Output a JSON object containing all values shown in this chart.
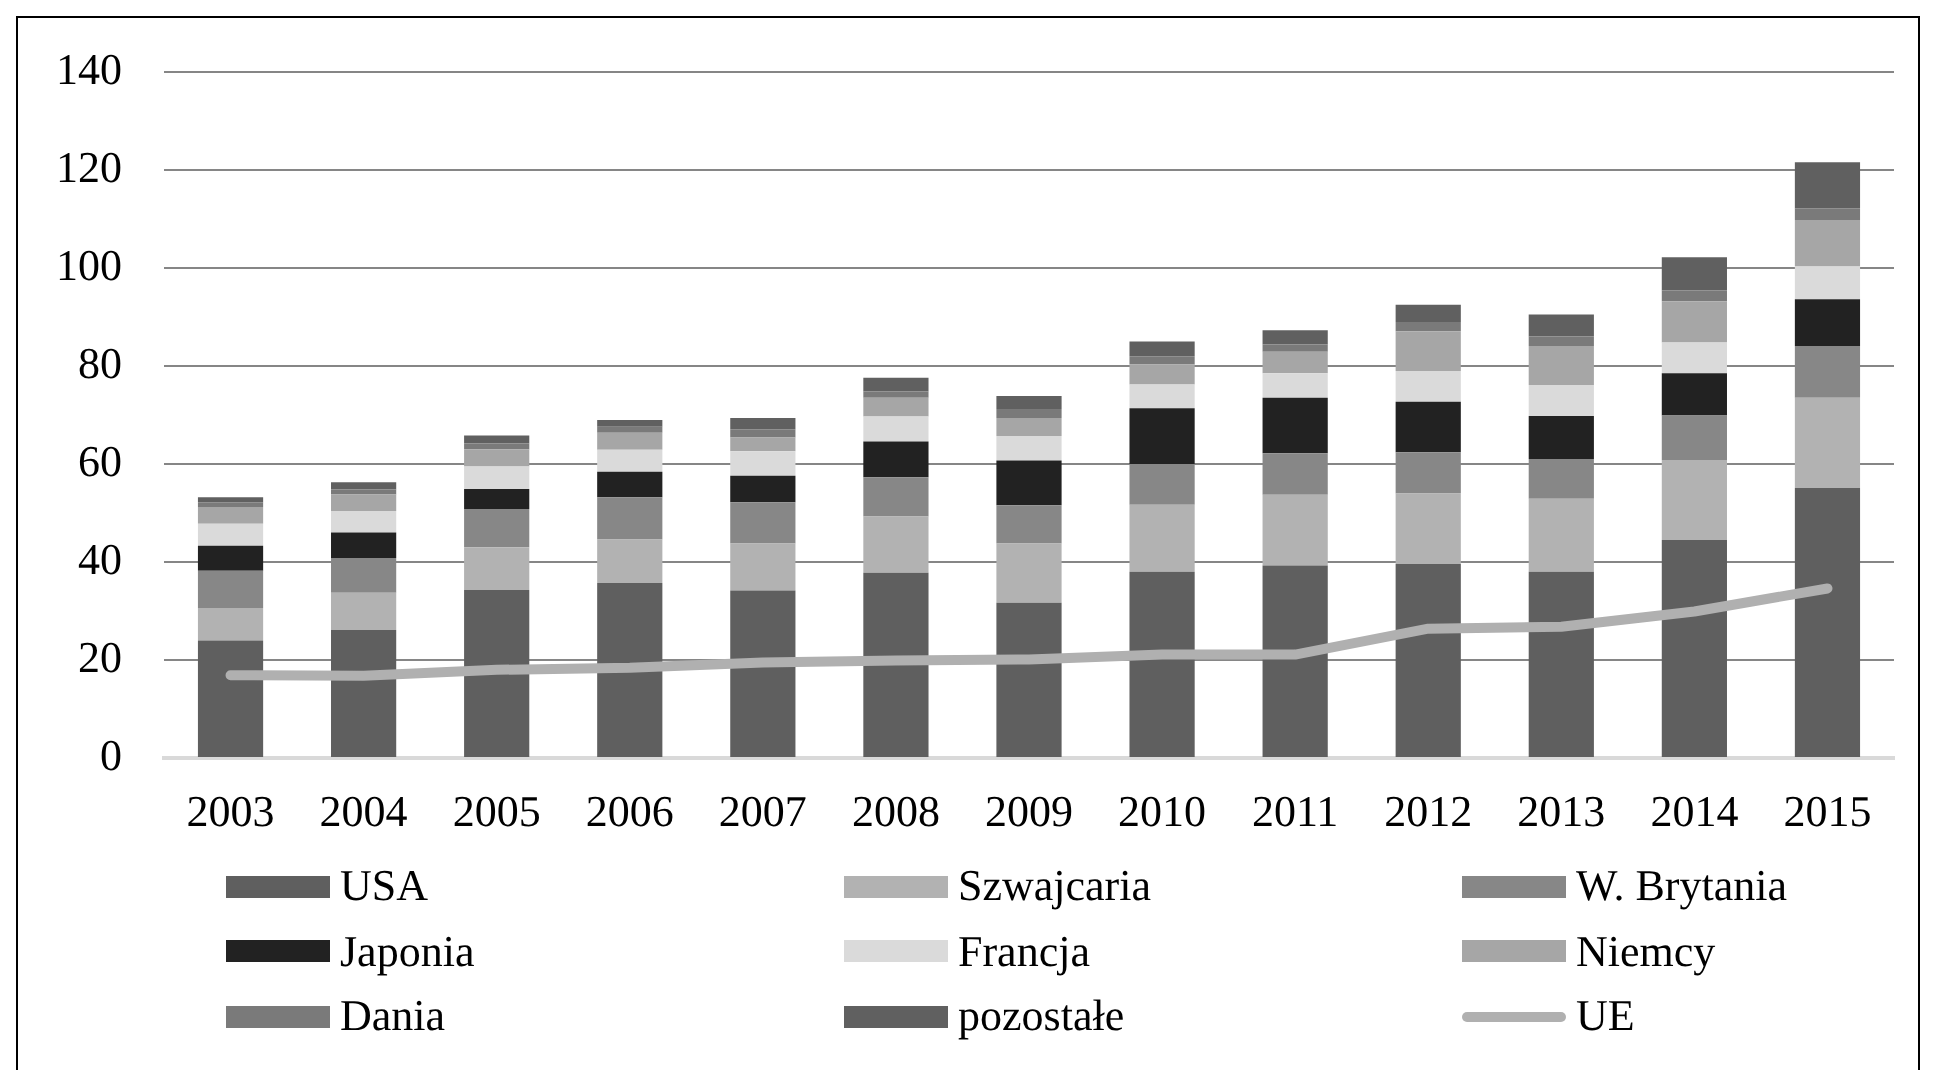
{
  "chart_data": {
    "type": "bar",
    "stacked": true,
    "categories": [
      "2003",
      "2004",
      "2005",
      "2006",
      "2007",
      "2008",
      "2009",
      "2010",
      "2011",
      "2012",
      "2013",
      "2014",
      "2015"
    ],
    "series": [
      {
        "name": "USA",
        "color": "#5f5f5f",
        "values": [
          24.0,
          26.1,
          34.3,
          35.7,
          34.2,
          37.8,
          31.7,
          38.0,
          39.3,
          39.6,
          38.0,
          44.5,
          55.1
        ]
      },
      {
        "name": "Szwajcaria",
        "color": "#b2b2b2",
        "values": [
          6.6,
          7.6,
          8.7,
          8.9,
          9.6,
          11.5,
          12.1,
          13.7,
          14.4,
          14.4,
          14.9,
          16.3,
          18.4
        ]
      },
      {
        "name": "W. Brytania",
        "color": "#878787",
        "values": [
          7.6,
          7.1,
          7.8,
          8.6,
          8.4,
          8.0,
          7.8,
          8.3,
          8.5,
          8.4,
          8.1,
          9.1,
          10.6
        ]
      },
      {
        "name": "Japonia",
        "color": "#222222",
        "values": [
          5.1,
          5.2,
          4.1,
          5.2,
          5.4,
          7.3,
          9.1,
          11.4,
          11.3,
          10.3,
          8.8,
          8.6,
          9.5
        ]
      },
      {
        "name": "Francja",
        "color": "#dadada",
        "values": [
          4.5,
          4.4,
          4.6,
          4.5,
          5.0,
          5.1,
          5.0,
          4.8,
          5.0,
          6.3,
          6.3,
          6.3,
          6.7
        ]
      },
      {
        "name": "Niemcy",
        "color": "#a6a6a6",
        "values": [
          3.4,
          3.4,
          3.5,
          3.5,
          2.8,
          3.8,
          3.7,
          4.1,
          4.4,
          8.1,
          8.0,
          8.4,
          9.5
        ]
      },
      {
        "name": "Dania",
        "color": "#7a7a7a",
        "values": [
          1.0,
          1.0,
          1.2,
          1.2,
          1.7,
          1.3,
          1.8,
          1.7,
          1.5,
          1.9,
          1.9,
          2.2,
          2.4
        ]
      },
      {
        "name": "pozostałe",
        "color": "#606060",
        "values": [
          1.0,
          1.5,
          1.6,
          1.4,
          2.3,
          2.8,
          2.7,
          3.0,
          2.9,
          3.5,
          4.5,
          6.8,
          9.4
        ]
      },
      {
        "name": "UE",
        "type": "line",
        "color": "#b0b0b0",
        "values": [
          16.9,
          16.8,
          18.0,
          18.4,
          19.5,
          19.9,
          20.1,
          21.1,
          21.1,
          26.4,
          26.8,
          29.9,
          34.6
        ]
      }
    ],
    "ylim": [
      0,
      140
    ],
    "yticks": [
      0,
      20,
      40,
      60,
      80,
      100,
      120,
      140
    ],
    "grid": "y",
    "legend": "bottom",
    "marker": "none",
    "line_style": "solid"
  }
}
